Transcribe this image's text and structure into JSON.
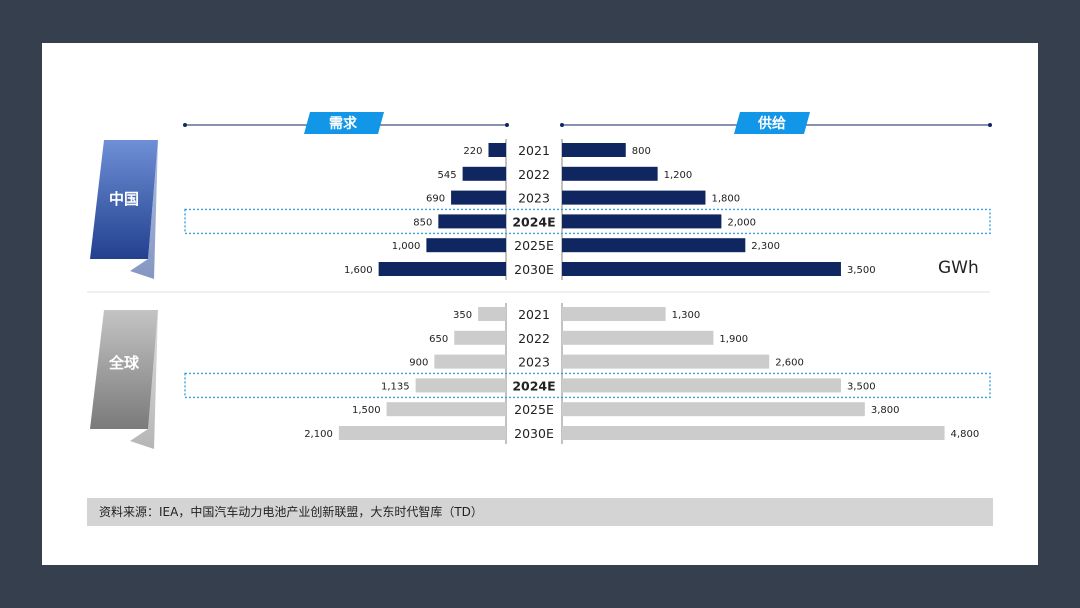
{
  "colors": {
    "china_bar": "#0f2660",
    "global_bar": "#cccccc",
    "header_blue": "#1196e8",
    "china_label_top": "#6f8fd6",
    "china_label_bottom": "#22408e",
    "global_label_top": "#c4c4c4",
    "global_label_bottom": "#7a7a7a",
    "highlight_border": "#3aa0dc"
  },
  "chart_data": {
    "type": "bar",
    "orientation": "horizontal-butterfly",
    "demand_label": "需求",
    "supply_label": "供给",
    "unit": "GWh",
    "highlight_category": "2024E",
    "groups": [
      {
        "name": "中国",
        "categories": [
          "2021",
          "2022",
          "2023",
          "2024E",
          "2025E",
          "2030E"
        ],
        "series": [
          {
            "name": "需求",
            "values": [
              220,
              545,
              690,
              850,
              1000,
              1600
            ],
            "labels": [
              "220",
              "545",
              "690",
              "850",
              "1,000",
              "1,600"
            ]
          },
          {
            "name": "供给",
            "values": [
              800,
              1200,
              1800,
              2000,
              2300,
              3500
            ],
            "labels": [
              "800",
              "1,200",
              "1,800",
              "2,000",
              "2,300",
              "3,500"
            ]
          }
        ]
      },
      {
        "name": "全球",
        "categories": [
          "2021",
          "2022",
          "2023",
          "2024E",
          "2025E",
          "2030E"
        ],
        "series": [
          {
            "name": "需求",
            "values": [
              350,
              650,
              900,
              1135,
              1500,
              2100
            ],
            "labels": [
              "350",
              "650",
              "900",
              "1,135",
              "1,500",
              "2,100"
            ]
          },
          {
            "name": "供给",
            "values": [
              1300,
              1900,
              2600,
              3500,
              3800,
              4800
            ],
            "labels": [
              "1,300",
              "1,900",
              "2,600",
              "3,500",
              "3,800",
              "4,800"
            ]
          }
        ]
      }
    ]
  },
  "source": "资料来源：IEA，中国汽车动力电池产业创新联盟，大东时代智库（TD）"
}
